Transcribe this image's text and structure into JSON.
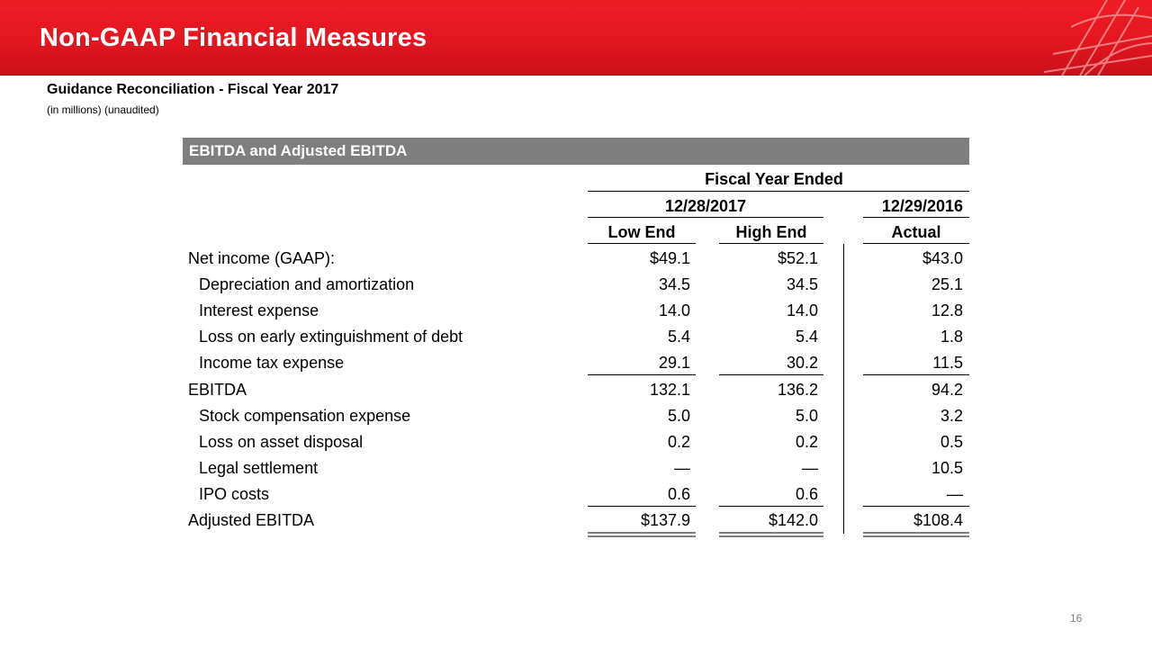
{
  "header": {
    "title": "Non-GAAP Financial Measures"
  },
  "subtitle": "Guidance Reconciliation - Fiscal Year 2017",
  "note": "(in millions) (unaudited)",
  "section_title": "EBITDA and Adjusted EBITDA",
  "columns": {
    "fiscal_year_ended": "Fiscal Year Ended",
    "date_2017": "12/28/2017",
    "date_2016": "12/29/2016",
    "low_end": "Low End",
    "high_end": "High End",
    "actual": "Actual"
  },
  "rows": [
    {
      "label": "Net income (GAAP):",
      "low": "$49.1",
      "high": "$52.1",
      "actual": "$43.0"
    },
    {
      "label": "Depreciation and amortization",
      "low": "34.5",
      "high": "34.5",
      "actual": "25.1"
    },
    {
      "label": "Interest expense",
      "low": "14.0",
      "high": "14.0",
      "actual": "12.8"
    },
    {
      "label": "Loss on early extinguishment of debt",
      "low": "5.4",
      "high": "5.4",
      "actual": "1.8"
    },
    {
      "label": "Income tax expense",
      "low": "29.1",
      "high": "30.2",
      "actual": "11.5"
    },
    {
      "label": "EBITDA",
      "low": "132.1",
      "high": "136.2",
      "actual": "94.2"
    },
    {
      "label": "Stock compensation expense",
      "low": "5.0",
      "high": "5.0",
      "actual": "3.2"
    },
    {
      "label": "Loss on asset disposal",
      "low": "0.2",
      "high": "0.2",
      "actual": "0.5"
    },
    {
      "label": "Legal settlement",
      "low": "—",
      "high": "—",
      "actual": "10.5"
    },
    {
      "label": "IPO costs",
      "low": "0.6",
      "high": "0.6",
      "actual": "—"
    },
    {
      "label": "Adjusted EBITDA",
      "low": "$137.9",
      "high": "$142.0",
      "actual": "$108.4"
    }
  ],
  "page_number": "16",
  "colors": {
    "brand_red": "#e3161f",
    "section_gray": "#7f7f7f"
  }
}
